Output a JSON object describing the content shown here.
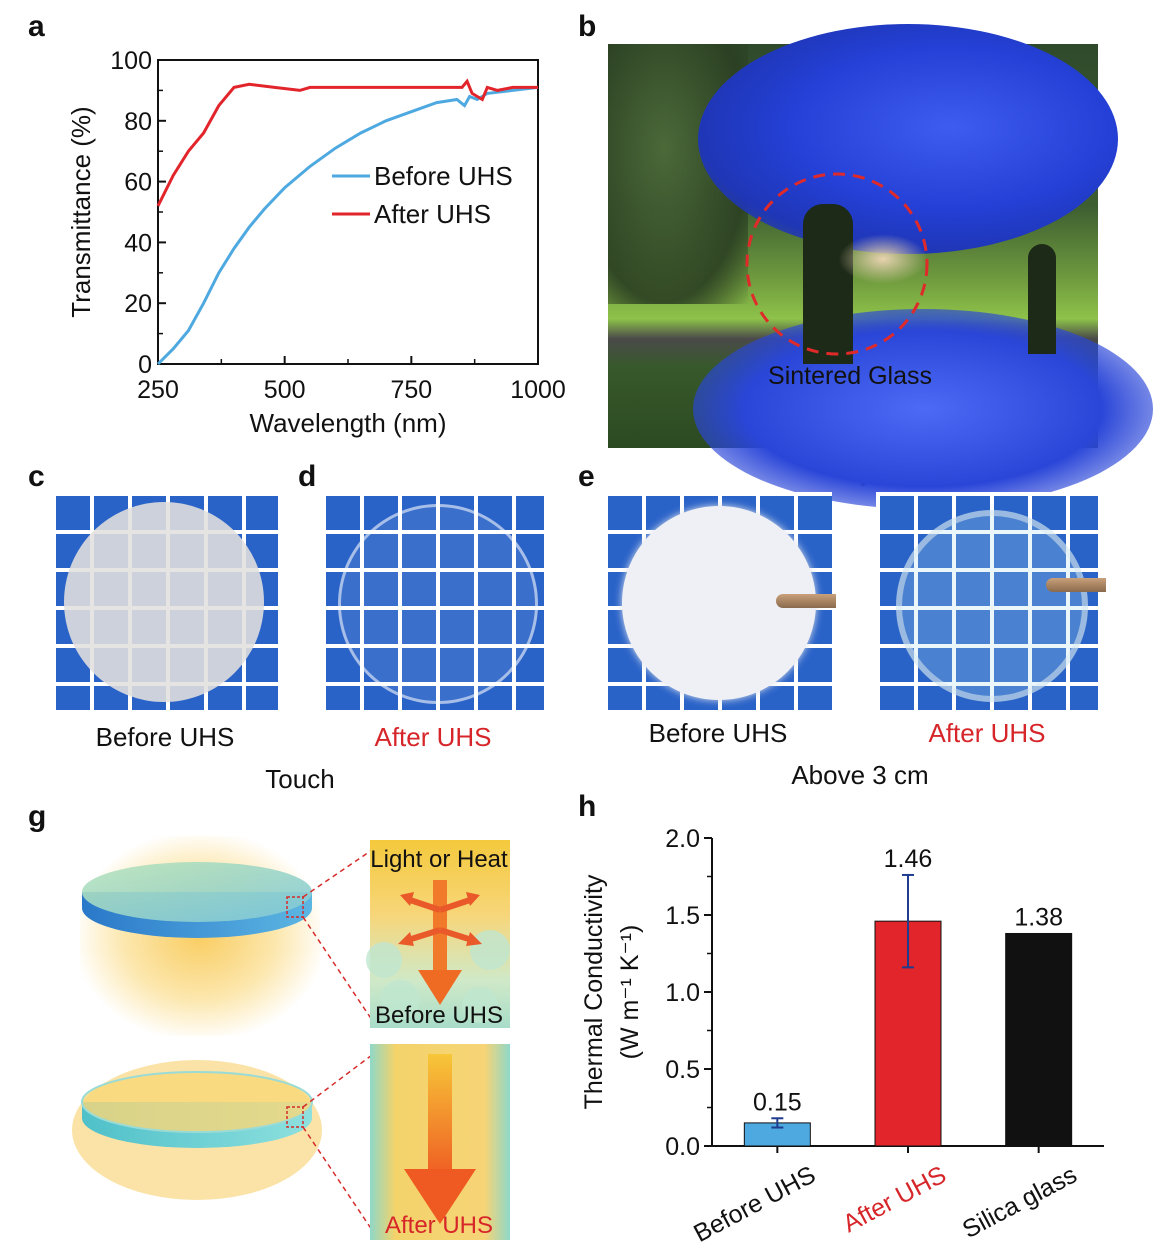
{
  "panels": {
    "a": {
      "label": "a"
    },
    "b": {
      "label": "b",
      "caption": "Sintered Glass"
    },
    "c": {
      "label": "c",
      "caption": "Before UHS"
    },
    "d": {
      "label": "d",
      "caption": "After UHS"
    },
    "e": {
      "label": "e",
      "caption": "Before UHS"
    },
    "f": {
      "label": "f",
      "caption": "After UHS"
    },
    "cd_group_caption": "Touch",
    "ef_group_caption": "Above 3 cm",
    "g": {
      "label": "g",
      "top_text": "Light or Heat",
      "top_caption": "Before UHS",
      "bottom_caption": "After UHS"
    },
    "h": {
      "label": "h"
    }
  },
  "colors": {
    "blue": "#4ea9e0",
    "red": "#e2242b",
    "black": "#111111",
    "caption_red": "#d6262a"
  },
  "chart_data": [
    {
      "type": "line",
      "panel": "a",
      "xlabel": "Wavelength (nm)",
      "ylabel": "Transmittance (%)",
      "xlim": [
        250,
        1000
      ],
      "ylim": [
        0,
        100
      ],
      "xticks": [
        250,
        500,
        750,
        1000
      ],
      "yticks": [
        0,
        20,
        40,
        60,
        80,
        100
      ],
      "legend": "center-right",
      "series": [
        {
          "name": "Before UHS",
          "color": "#4ea9e0",
          "x": [
            250,
            280,
            310,
            340,
            370,
            400,
            430,
            460,
            500,
            550,
            600,
            650,
            700,
            750,
            800,
            840,
            855,
            865,
            880,
            900,
            950,
            1000
          ],
          "y": [
            0,
            5,
            11,
            20,
            30,
            38,
            45,
            51,
            58,
            65,
            71,
            76,
            80,
            83,
            86,
            87,
            85,
            88,
            87,
            89,
            90,
            91
          ]
        },
        {
          "name": "After UHS",
          "color": "#e2242b",
          "x": [
            250,
            280,
            310,
            340,
            370,
            400,
            430,
            480,
            530,
            550,
            600,
            700,
            800,
            850,
            860,
            870,
            890,
            900,
            920,
            950,
            1000
          ],
          "y": [
            52,
            62,
            70,
            76,
            85,
            91,
            92,
            91,
            90,
            91,
            91,
            91,
            91,
            91,
            93,
            89,
            87,
            91,
            90,
            91,
            91
          ]
        }
      ]
    },
    {
      "type": "bar",
      "panel": "h",
      "ylabel": "Thermal Conductivity",
      "ylabel2": "(W m⁻¹ K⁻¹)",
      "ylim": [
        0,
        2.0
      ],
      "yticks": [
        "0.0",
        "0.5",
        "1.0",
        "1.5",
        "2.0"
      ],
      "categories": [
        "Before UHS",
        "After UHS",
        "Silica glass"
      ],
      "category_colors": [
        "#111111",
        "#d6262a",
        "#111111"
      ],
      "values": [
        0.15,
        1.46,
        1.38
      ],
      "value_labels": [
        "0.15",
        "1.46",
        "1.38"
      ],
      "errors": [
        0.03,
        0.3,
        0
      ],
      "bar_colors": [
        "#4ea9e0",
        "#e2242b",
        "#111111"
      ]
    }
  ]
}
